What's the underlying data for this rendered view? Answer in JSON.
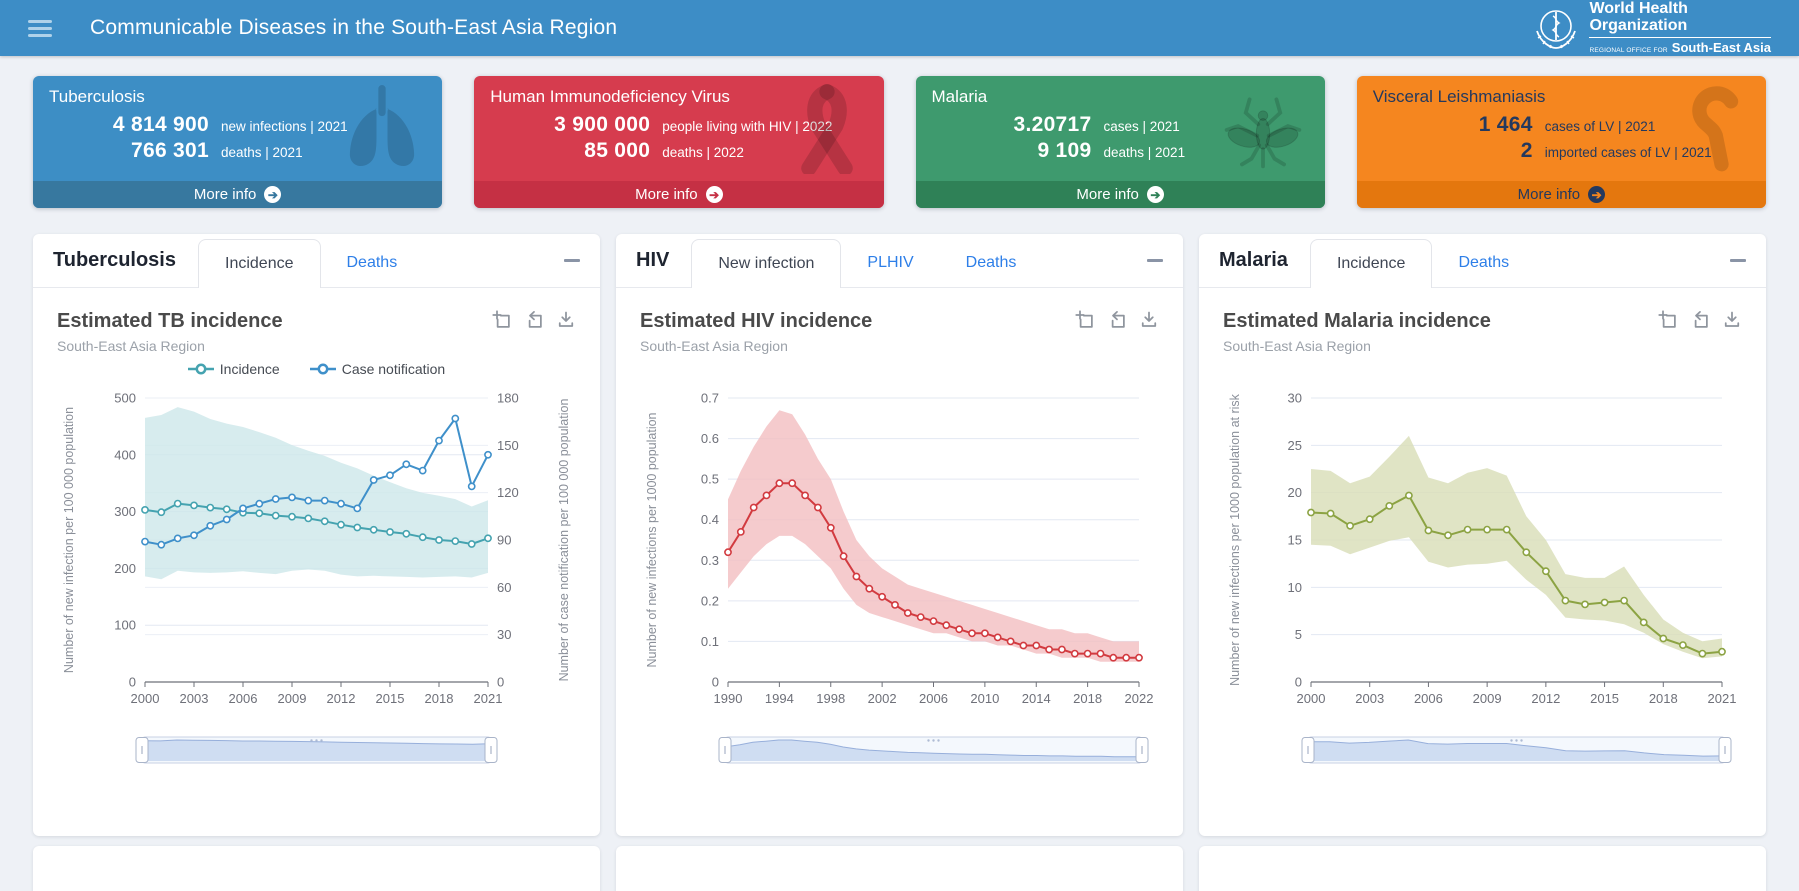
{
  "header": {
    "title": "Communicable Diseases in the South-East Asia Region",
    "logo": {
      "org_line1": "World Health",
      "org_line2": "Organization",
      "office_prefix": "REGIONAL OFFICE FOR",
      "region": "South-East Asia"
    }
  },
  "cards": [
    {
      "title": "Tuberculosis",
      "icon": "lungs-icon",
      "color": "#3D8EC5",
      "footer_color": "#37789F",
      "stats": [
        {
          "value": "4 814 900",
          "label": "new infections | 2021"
        },
        {
          "value": "766 301",
          "label": "deaths | 2021"
        }
      ],
      "more_info_label": "More info"
    },
    {
      "title": "Human Immunodeficiency Virus",
      "icon": "awareness-ribbon-icon",
      "color": "#D63C4E",
      "footer_color": "#C53044",
      "stats": [
        {
          "value": "3 900 000",
          "label": "people living with HIV | 2022"
        },
        {
          "value": "85 000",
          "label": "deaths | 2022"
        }
      ],
      "more_info_label": "More info"
    },
    {
      "title": "Malaria",
      "icon": "mosquito-icon",
      "color": "#3E9A6E",
      "footer_color": "#2F8157",
      "stats": [
        {
          "value": "3.20717",
          "label": "cases | 2021"
        },
        {
          "value": "9 109",
          "label": "deaths | 2021"
        }
      ],
      "more_info_label": "More info"
    },
    {
      "title": "Visceral Leishmaniasis",
      "icon": "sandfly-icon",
      "color": "#F5861F",
      "footer_color": "#E4770E",
      "text_color": "#24395E",
      "stats": [
        {
          "value": "1 464",
          "label": "cases of LV | 2021"
        },
        {
          "value": "2",
          "label": "imported cases of LV | 2021"
        }
      ],
      "more_info_label": "More info"
    }
  ],
  "panels": [
    {
      "name": "Tuberculosis",
      "tabs": [
        {
          "label": "Incidence"
        },
        {
          "label": "Deaths"
        }
      ],
      "chart_title": "Estimated TB incidence",
      "chart_subtitle": "South-East Asia Region"
    },
    {
      "name": "HIV",
      "tabs": [
        {
          "label": "New infection"
        },
        {
          "label": "PLHIV"
        },
        {
          "label": "Deaths"
        }
      ],
      "chart_title": "Estimated HIV incidence",
      "chart_subtitle": "South-East Asia Region"
    },
    {
      "name": "Malaria",
      "tabs": [
        {
          "label": "Incidence"
        },
        {
          "label": "Deaths"
        }
      ],
      "chart_title": "Estimated Malaria incidence",
      "chart_subtitle": "South-East Asia Region"
    }
  ],
  "toolbox_icons": [
    "data-zoom-select-icon",
    "restore-icon",
    "save-as-image-icon"
  ],
  "chart_data": [
    {
      "type": "line",
      "title": "Estimated TB incidence",
      "subtitle": "South-East Asia Region",
      "x": [
        2000,
        2001,
        2002,
        2003,
        2004,
        2005,
        2006,
        2007,
        2008,
        2009,
        2010,
        2011,
        2012,
        2013,
        2014,
        2015,
        2016,
        2017,
        2018,
        2019,
        2020,
        2021
      ],
      "x_tick_labels": [
        "2000",
        "2003",
        "2006",
        "2009",
        "2012",
        "2015",
        "2018",
        "2021"
      ],
      "ylabel_left": "Number of new infection per 100 000 population",
      "ylabel_right": "Number of case notification per 100 000 population",
      "ylim_left": [
        0,
        500
      ],
      "yticks_left": [
        0,
        100,
        200,
        300,
        400,
        500
      ],
      "ylim_right": [
        0,
        180
      ],
      "yticks_right": [
        0,
        30,
        60,
        90,
        120,
        150,
        180
      ],
      "grid": true,
      "legend_position": "top",
      "series": [
        {
          "name": "Incidence",
          "axis": "left",
          "color": "#45A3B0",
          "values": [
            303,
            299,
            314,
            311,
            307,
            304,
            298,
            297,
            293,
            291,
            288,
            283,
            277,
            272,
            268,
            264,
            261,
            255,
            250,
            248,
            243,
            253
          ]
        },
        {
          "name": "Case notification",
          "axis": "right",
          "color": "#3F90CA",
          "values": [
            89,
            87,
            91,
            93,
            99,
            103,
            110,
            113,
            116,
            117,
            115,
            115,
            113,
            110,
            128,
            131,
            138,
            134,
            153,
            167,
            124,
            144
          ]
        }
      ],
      "band": {
        "series": "Incidence",
        "axis": "left",
        "color": "#CDE7EA",
        "upper": [
          465,
          470,
          484,
          476,
          463,
          455,
          449,
          440,
          430,
          417,
          407,
          398,
          386,
          376,
          363,
          352,
          341,
          333,
          328,
          322,
          309,
          320
        ],
        "lower": [
          186,
          181,
          196,
          193,
          192,
          193,
          195,
          192,
          190,
          196,
          198,
          196,
          189,
          186,
          187,
          186,
          185,
          184,
          185,
          186,
          184,
          192
        ]
      }
    },
    {
      "type": "line",
      "title": "Estimated HIV incidence",
      "subtitle": "South-East Asia Region",
      "x": [
        1990,
        1991,
        1992,
        1993,
        1994,
        1995,
        1996,
        1997,
        1998,
        1999,
        2000,
        2001,
        2002,
        2003,
        2004,
        2005,
        2006,
        2007,
        2008,
        2009,
        2010,
        2011,
        2012,
        2013,
        2014,
        2015,
        2016,
        2017,
        2018,
        2019,
        2020,
        2021,
        2022
      ],
      "x_tick_labels": [
        "1990",
        "1994",
        "1998",
        "2002",
        "2006",
        "2010",
        "2014",
        "2018",
        "2022"
      ],
      "ylabel_left": "Number of new infections per 1000 population",
      "ylim_left": [
        0,
        0.7
      ],
      "yticks_left": [
        0,
        0.1,
        0.2,
        0.3,
        0.4,
        0.5,
        0.6,
        0.7
      ],
      "grid": true,
      "legend_position": "none",
      "series": [
        {
          "name": "New infections",
          "axis": "left",
          "color": "#D23B40",
          "values": [
            0.32,
            0.37,
            0.43,
            0.46,
            0.49,
            0.49,
            0.46,
            0.43,
            0.38,
            0.31,
            0.26,
            0.23,
            0.21,
            0.19,
            0.17,
            0.16,
            0.15,
            0.14,
            0.13,
            0.12,
            0.12,
            0.11,
            0.1,
            0.09,
            0.09,
            0.08,
            0.08,
            0.07,
            0.07,
            0.07,
            0.06,
            0.06,
            0.06
          ]
        }
      ],
      "band": {
        "series": "New infections",
        "axis": "left",
        "color": "#F2BEC1",
        "upper": [
          0.45,
          0.52,
          0.58,
          0.63,
          0.67,
          0.66,
          0.61,
          0.55,
          0.5,
          0.42,
          0.35,
          0.31,
          0.28,
          0.26,
          0.24,
          0.23,
          0.22,
          0.21,
          0.2,
          0.19,
          0.18,
          0.17,
          0.16,
          0.15,
          0.14,
          0.13,
          0.13,
          0.12,
          0.12,
          0.11,
          0.1,
          0.1,
          0.1
        ],
        "lower": [
          0.23,
          0.27,
          0.31,
          0.34,
          0.36,
          0.36,
          0.34,
          0.31,
          0.28,
          0.23,
          0.19,
          0.17,
          0.16,
          0.15,
          0.14,
          0.13,
          0.12,
          0.12,
          0.11,
          0.1,
          0.1,
          0.09,
          0.09,
          0.08,
          0.07,
          0.07,
          0.06,
          0.06,
          0.06,
          0.05,
          0.05,
          0.05,
          0.05
        ]
      }
    },
    {
      "type": "line",
      "title": "Estimated Malaria incidence",
      "subtitle": "South-East Asia Region",
      "x": [
        2000,
        2001,
        2002,
        2003,
        2004,
        2005,
        2006,
        2007,
        2008,
        2009,
        2010,
        2011,
        2012,
        2013,
        2014,
        2015,
        2016,
        2017,
        2018,
        2019,
        2020,
        2021
      ],
      "x_tick_labels": [
        "2000",
        "2003",
        "2006",
        "2009",
        "2012",
        "2015",
        "2018",
        "2021"
      ],
      "ylabel_left": "Number of new infections per 1000 population at risk",
      "ylim_left": [
        0,
        30
      ],
      "yticks_left": [
        0,
        5,
        10,
        15,
        20,
        25,
        30
      ],
      "grid": true,
      "legend_position": "none",
      "series": [
        {
          "name": "Incidence",
          "axis": "left",
          "color": "#8CA343",
          "values": [
            17.9,
            17.8,
            16.5,
            17.2,
            18.6,
            19.7,
            16.0,
            15.5,
            16.1,
            16.1,
            16.1,
            13.7,
            11.7,
            8.6,
            8.2,
            8.4,
            8.6,
            6.3,
            4.6,
            3.9,
            3.0,
            3.2
          ]
        }
      ],
      "band": {
        "series": "Incidence",
        "axis": "left",
        "color": "#D8DDB6",
        "upper": [
          22.5,
          22.3,
          21.0,
          21.7,
          23.8,
          26.0,
          21.6,
          21.0,
          22.1,
          22.6,
          21.8,
          17.5,
          15.0,
          11.4,
          11.0,
          11.0,
          12.2,
          9.2,
          6.6,
          5.2,
          4.3,
          4.6
        ],
        "lower": [
          14.5,
          14.4,
          13.5,
          14.2,
          14.9,
          15.3,
          12.7,
          12.1,
          12.4,
          12.5,
          12.8,
          10.8,
          9.2,
          6.8,
          6.6,
          6.5,
          6.1,
          5.2,
          4.0,
          3.2,
          2.5,
          2.7
        ]
      }
    }
  ]
}
